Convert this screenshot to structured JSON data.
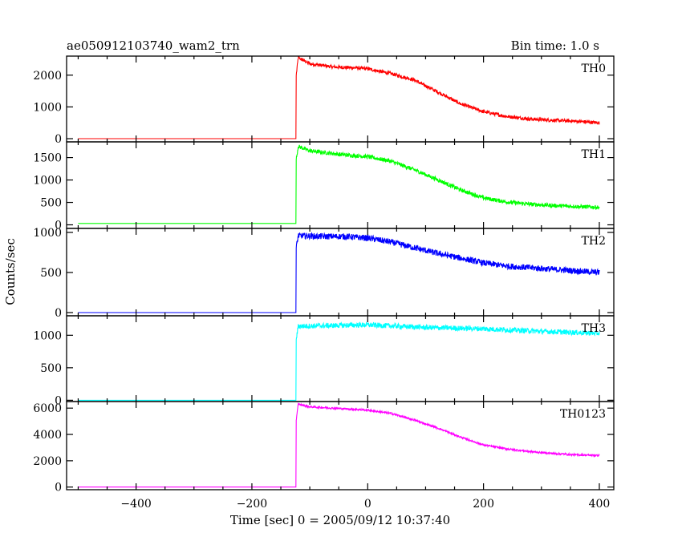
{
  "header": {
    "title": "ae050912103740_wam2_trn",
    "bin_time": "Bin time: 1.0 s"
  },
  "chart_data": {
    "type": "line",
    "title": "ae050912103740_wam2_trn",
    "subtitle": "Bin time: 1.0 s",
    "xlabel": "Time [sec] 0 = 2005/09/12 10:37:40",
    "ylabel": "Counts/sec",
    "xlim": [
      -520,
      425
    ],
    "x_ticks": [
      -400,
      -200,
      0,
      200,
      400
    ],
    "x_tick_labels": [
      "−400",
      "−200",
      "0",
      "200",
      "400"
    ],
    "grid": false,
    "panels": [
      {
        "name": "TH0",
        "color": "#ff0000",
        "ylim": [
          -100,
          2600
        ],
        "y_ticks": [
          0,
          1000,
          2000
        ],
        "noise": 55,
        "points": [
          [
            -500,
            0
          ],
          [
            -124,
            0
          ],
          [
            -124,
            1900
          ],
          [
            -120,
            2550
          ],
          [
            -100,
            2360
          ],
          [
            -60,
            2260
          ],
          [
            -20,
            2230
          ],
          [
            0,
            2200
          ],
          [
            40,
            2050
          ],
          [
            80,
            1850
          ],
          [
            120,
            1480
          ],
          [
            160,
            1100
          ],
          [
            200,
            850
          ],
          [
            240,
            700
          ],
          [
            280,
            620
          ],
          [
            320,
            580
          ],
          [
            360,
            550
          ],
          [
            400,
            500
          ]
        ]
      },
      {
        "name": "TH1",
        "color": "#00ff00",
        "ylim": [
          -80,
          1850
        ],
        "y_ticks": [
          0,
          500,
          1000,
          1500
        ],
        "noise": 45,
        "points": [
          [
            -500,
            30
          ],
          [
            -124,
            30
          ],
          [
            -124,
            1400
          ],
          [
            -120,
            1750
          ],
          [
            -100,
            1650
          ],
          [
            -40,
            1560
          ],
          [
            0,
            1520
          ],
          [
            40,
            1420
          ],
          [
            80,
            1230
          ],
          [
            120,
            1010
          ],
          [
            160,
            780
          ],
          [
            200,
            600
          ],
          [
            240,
            510
          ],
          [
            280,
            460
          ],
          [
            320,
            430
          ],
          [
            360,
            410
          ],
          [
            400,
            390
          ]
        ]
      },
      {
        "name": "TH2",
        "color": "#0000ff",
        "ylim": [
          -40,
          1050
        ],
        "y_ticks": [
          0,
          500,
          1000
        ],
        "noise": 38,
        "points": [
          [
            -500,
            0
          ],
          [
            -124,
            0
          ],
          [
            -124,
            780
          ],
          [
            -120,
            960
          ],
          [
            -80,
            950
          ],
          [
            -40,
            950
          ],
          [
            0,
            930
          ],
          [
            40,
            880
          ],
          [
            80,
            810
          ],
          [
            120,
            740
          ],
          [
            160,
            680
          ],
          [
            200,
            620
          ],
          [
            240,
            580
          ],
          [
            280,
            560
          ],
          [
            320,
            540
          ],
          [
            360,
            520
          ],
          [
            400,
            500
          ]
        ]
      },
      {
        "name": "TH3",
        "color": "#00ffff",
        "ylim": [
          -20,
          1300
        ],
        "y_ticks": [
          0,
          500,
          1000
        ],
        "noise": 40,
        "points": [
          [
            -500,
            0
          ],
          [
            -124,
            0
          ],
          [
            -124,
            900
          ],
          [
            -120,
            1140
          ],
          [
            -60,
            1150
          ],
          [
            0,
            1160
          ],
          [
            100,
            1120
          ],
          [
            200,
            1100
          ],
          [
            300,
            1060
          ],
          [
            400,
            1030
          ]
        ]
      },
      {
        "name": "TH0123",
        "color": "#ff00ff",
        "ylim": [
          -200,
          6500
        ],
        "y_ticks": [
          0,
          2000,
          4000,
          6000
        ],
        "noise": 70,
        "points": [
          [
            -500,
            0
          ],
          [
            -124,
            0
          ],
          [
            -124,
            4900
          ],
          [
            -120,
            6300
          ],
          [
            -100,
            6100
          ],
          [
            -40,
            5950
          ],
          [
            0,
            5850
          ],
          [
            40,
            5600
          ],
          [
            80,
            5100
          ],
          [
            120,
            4500
          ],
          [
            160,
            3800
          ],
          [
            200,
            3200
          ],
          [
            240,
            2900
          ],
          [
            280,
            2700
          ],
          [
            320,
            2550
          ],
          [
            360,
            2450
          ],
          [
            400,
            2400
          ]
        ]
      }
    ]
  }
}
